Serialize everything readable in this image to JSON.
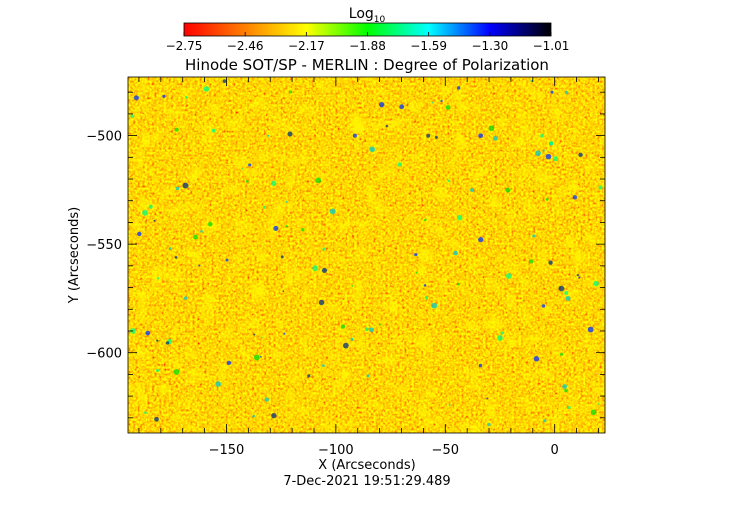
{
  "chart_data": {
    "type": "heatmap",
    "title": "Hinode SOT/SP - MERLIN : Degree of Polarization",
    "xlabel": "X (Arcseconds)",
    "ylabel": "Y (Arcseconds)",
    "timestamp": "7-Dec-2021 19:51:29.489",
    "xlim": [
      -195,
      23
    ],
    "ylim": [
      -637,
      -473
    ],
    "xticks": [
      -150,
      -100,
      -50,
      0
    ],
    "yticks": [
      -500,
      -550,
      -600
    ],
    "x_tick_labels": [
      "−150",
      "−100",
      "−50",
      "0"
    ],
    "y_tick_labels": [
      "−500",
      "−550",
      "−600"
    ],
    "colorbar": {
      "label_base": "Log",
      "label_sub": "10",
      "ticks": [
        -2.75,
        -2.46,
        -2.17,
        -1.88,
        -1.59,
        -1.3,
        -1.01
      ],
      "tick_labels": [
        "−2.75",
        "−2.46",
        "−2.17",
        "−1.88",
        "−1.59",
        "−1.30",
        "−1.01"
      ],
      "range": [
        -2.75,
        -1.01
      ],
      "colormap": [
        "#ff0000",
        "#ff8000",
        "#ffff00",
        "#00ff00",
        "#00ffff",
        "#0000ff",
        "#000000"
      ]
    },
    "grid": false
  }
}
